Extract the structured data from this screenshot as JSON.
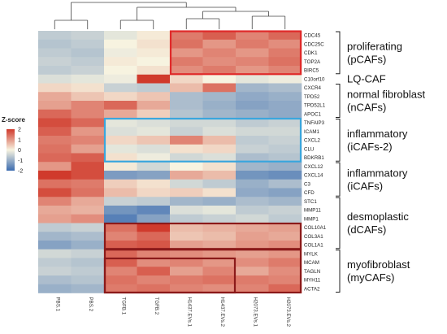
{
  "chart_data": {
    "type": "heatmap",
    "legend_title": "Z-score",
    "legend_ticks": [
      "2",
      "1",
      "0",
      "-1",
      "-2"
    ],
    "colorscale": {
      "min": -2,
      "max": 2,
      "low": "#3b6cb0",
      "mid": "#f7f3e0",
      "high": "#d03a2c"
    },
    "x": [
      "PBS.1",
      "PBS.2",
      "TGFB.1",
      "TGFB.2",
      "H1437.EVs.1",
      "H1437.EVs.2",
      "H2073.EVs.1",
      "H2073.EVs.2"
    ],
    "y": [
      "CDC45",
      "CDC25C",
      "CDK1",
      "TOP2A",
      "BIRC5",
      "C10orf10",
      "CXCR4",
      "TPD52",
      "TPD52L1",
      "APOC1",
      "TNFAIP3",
      "ICAM1",
      "CXCL2",
      "CLU",
      "BDKRB1",
      "CXCL12",
      "CXCL14",
      "C3",
      "CFD",
      "STC1",
      "MMP11",
      "MMP1",
      "COL10A1",
      "COL3A1",
      "COL1A1",
      "MYLK",
      "MCAM",
      "TAGLN",
      "MYH11",
      "ACTA2"
    ],
    "z": [
      [
        -0.6,
        -0.5,
        -0.2,
        0.1,
        1.3,
        1.6,
        1.2,
        1.5
      ],
      [
        -0.7,
        -0.6,
        0.0,
        0.2,
        1.4,
        1.0,
        1.3,
        1.1
      ],
      [
        -0.6,
        -0.7,
        -0.1,
        0.1,
        1.0,
        1.2,
        1.0,
        1.3
      ],
      [
        -0.5,
        -0.6,
        0.1,
        0.0,
        1.3,
        1.1,
        1.2,
        1.4
      ],
      [
        -0.6,
        -0.5,
        0.0,
        0.2,
        1.1,
        1.3,
        1.0,
        1.2
      ],
      [
        -0.3,
        -0.2,
        -0.1,
        2.0,
        0.3,
        0.0,
        -0.2,
        -0.1
      ],
      [
        0.3,
        0.2,
        -0.5,
        -0.6,
        0.6,
        1.4,
        -0.9,
        -0.8
      ],
      [
        0.8,
        0.5,
        0.3,
        0.5,
        -0.8,
        -0.9,
        -1.1,
        -1.0
      ],
      [
        0.9,
        1.2,
        1.5,
        0.8,
        -0.8,
        -1.0,
        -1.2,
        -1.1
      ],
      [
        1.5,
        1.2,
        0.8,
        0.4,
        -0.7,
        -0.9,
        -1.0,
        -1.1
      ],
      [
        1.8,
        1.5,
        -0.2,
        -0.3,
        -0.4,
        -0.4,
        -0.6,
        -0.5
      ],
      [
        1.6,
        1.0,
        -0.3,
        -0.2,
        -0.5,
        -0.3,
        -0.4,
        -0.4
      ],
      [
        1.3,
        1.2,
        0.3,
        0.5,
        1.2,
        0.6,
        -0.6,
        -0.5
      ],
      [
        1.4,
        0.9,
        -0.2,
        -0.3,
        0.2,
        0.3,
        -0.5,
        -0.6
      ],
      [
        1.5,
        1.6,
        0.2,
        -0.1,
        -0.4,
        -0.3,
        -0.8,
        -0.7
      ],
      [
        1.0,
        1.8,
        0.1,
        -0.4,
        0.0,
        0.2,
        -0.9,
        -1.0
      ],
      [
        2.0,
        1.8,
        -1.3,
        -1.2,
        0.8,
        0.6,
        -1.4,
        -1.5
      ],
      [
        1.4,
        1.3,
        0.4,
        0.2,
        -0.4,
        -0.6,
        -1.0,
        -0.8
      ],
      [
        1.8,
        1.4,
        0.6,
        0.3,
        0.4,
        0.2,
        -1.1,
        -1.2
      ],
      [
        1.2,
        0.8,
        -0.5,
        -0.6,
        -0.9,
        -1.0,
        -0.8,
        -0.9
      ],
      [
        0.8,
        0.7,
        -1.4,
        -1.6,
        -0.3,
        -0.2,
        -0.6,
        -0.5
      ],
      [
        0.9,
        1.1,
        -1.7,
        -1.2,
        -0.6,
        -0.5,
        -0.4,
        -0.6
      ],
      [
        -0.6,
        -0.5,
        1.4,
        2.0,
        0.6,
        0.7,
        0.8,
        0.9
      ],
      [
        -0.9,
        -0.8,
        1.2,
        1.5,
        0.5,
        0.6,
        0.9,
        0.8
      ],
      [
        -1.2,
        -1.0,
        1.6,
        1.7,
        0.9,
        0.8,
        1.0,
        1.1
      ],
      [
        -0.4,
        -0.5,
        1.5,
        1.2,
        1.1,
        1.0,
        0.9,
        1.0
      ],
      [
        -0.6,
        -0.7,
        1.6,
        1.1,
        1.2,
        1.0,
        1.1,
        1.3
      ],
      [
        -0.5,
        -0.6,
        1.2,
        1.6,
        0.9,
        1.2,
        0.8,
        1.1
      ],
      [
        -0.8,
        -0.7,
        1.4,
        1.2,
        1.3,
        1.4,
        1.3,
        1.2
      ],
      [
        -1.0,
        -0.9,
        1.3,
        1.4,
        1.2,
        1.1,
        1.2,
        1.5
      ]
    ],
    "groups": [
      {
        "label": [
          "proliferating",
          "(pCAFs)"
        ],
        "rows": [
          0,
          4
        ],
        "box_cols": [
          4,
          7
        ],
        "box_color": "#e02a2a"
      },
      {
        "label": [
          "LQ-CAF"
        ],
        "rows": [
          5,
          5
        ]
      },
      {
        "label": [
          "normal fibroblast",
          "(nCAFs)"
        ],
        "rows": [
          6,
          9
        ]
      },
      {
        "label": [
          "inflammatory",
          "(iCAFs-2)"
        ],
        "rows": [
          10,
          14
        ],
        "box_cols": [
          2,
          7
        ],
        "box_color": "#3aa6dd"
      },
      {
        "label": [
          "inflammatory",
          "(iCAFs)"
        ],
        "rows": [
          15,
          18
        ]
      },
      {
        "label": [
          "desmoplastic",
          "(dCAFs)"
        ],
        "rows": [
          19,
          24
        ],
        "box_rows": [
          22,
          24
        ],
        "box_cols": [
          2,
          7
        ],
        "box_color": "#8b1a1a"
      },
      {
        "label": [
          "myofibroblast",
          "(myCAFs)"
        ],
        "rows": [
          25,
          29
        ],
        "box_cols": [
          2,
          7
        ],
        "box_color": "#8b1a1a"
      }
    ],
    "extra_boxes": [
      {
        "rows": [
          26,
          29
        ],
        "cols": [
          2,
          5
        ],
        "color": "#8b1a1a"
      }
    ]
  }
}
